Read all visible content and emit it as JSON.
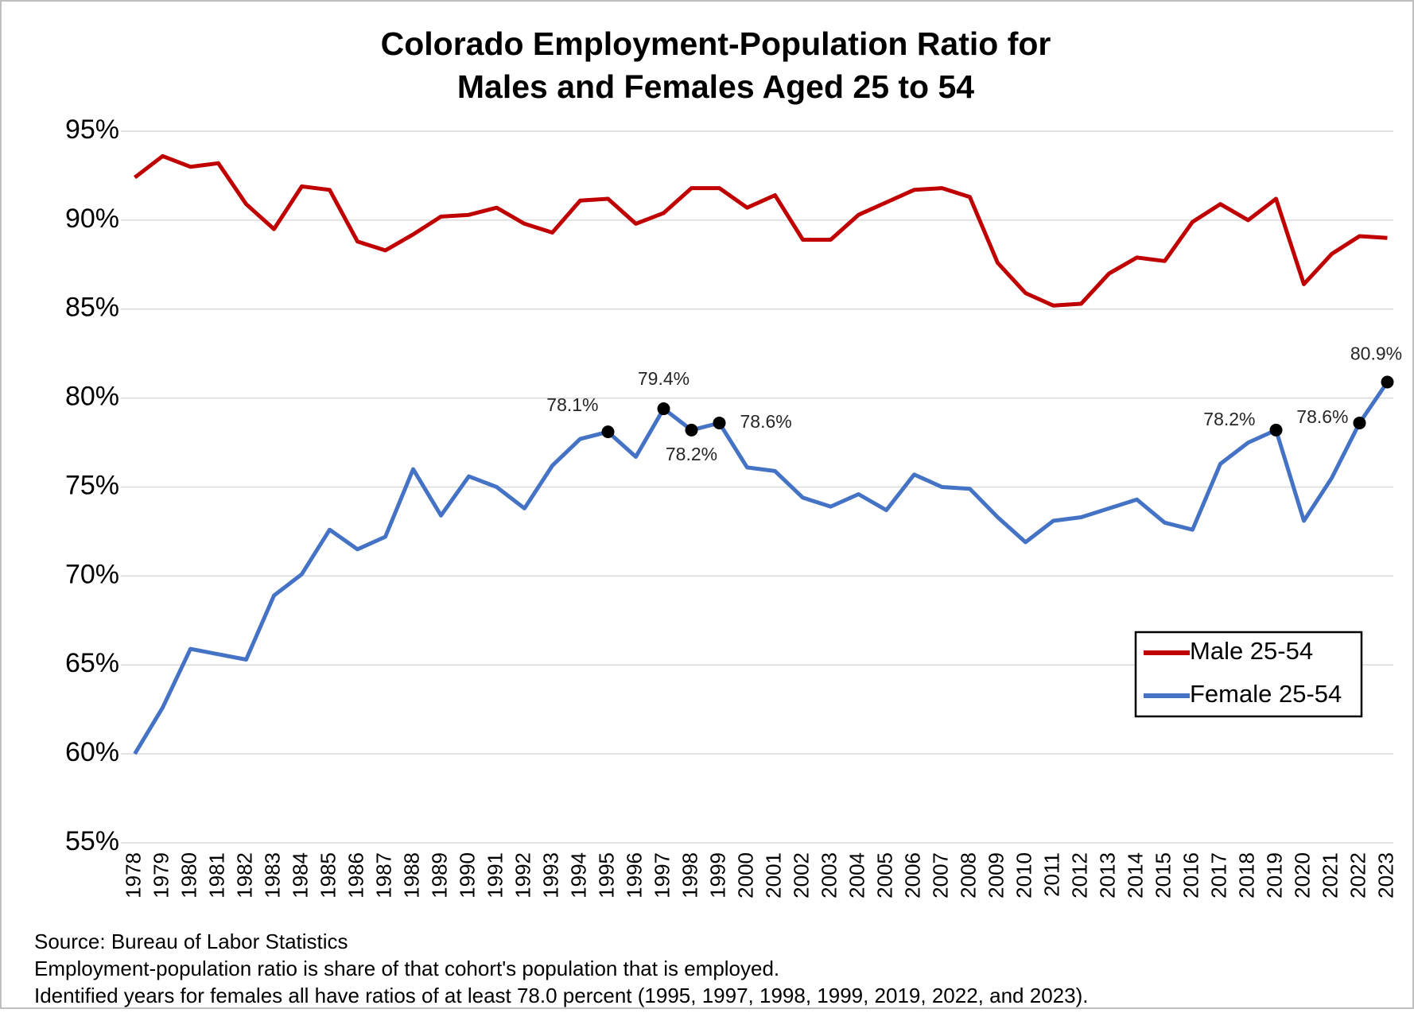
{
  "chart_data": {
    "type": "line",
    "title": [
      "Colorado Employment-Population Ratio for",
      "Males and Females Aged 25 to 54"
    ],
    "categories": [
      "1978",
      "1979",
      "1980",
      "1981",
      "1982",
      "1983",
      "1984",
      "1985",
      "1986",
      "1987",
      "1988",
      "1989",
      "1990",
      "1991",
      "1992",
      "1993",
      "1994",
      "1995",
      "1996",
      "1997",
      "1998",
      "1999",
      "2000",
      "2001",
      "2002",
      "2003",
      "2004",
      "2005",
      "2006",
      "2007",
      "2008",
      "2009",
      "2010",
      "2011",
      "2012",
      "2013",
      "2014",
      "2015",
      "2016",
      "2017",
      "2018",
      "2019",
      "2020",
      "2021",
      "2022",
      "2023"
    ],
    "series": [
      {
        "name": "Male 25-54",
        "color": "#c00000",
        "values": [
          92.4,
          93.6,
          93.0,
          93.2,
          90.9,
          89.5,
          91.9,
          91.7,
          88.8,
          88.3,
          89.2,
          90.2,
          90.3,
          90.7,
          89.8,
          89.3,
          91.1,
          91.2,
          89.8,
          90.4,
          91.8,
          91.8,
          90.7,
          91.4,
          88.9,
          88.9,
          90.3,
          91.0,
          91.7,
          91.8,
          91.3,
          87.6,
          85.9,
          85.2,
          85.3,
          87.0,
          87.9,
          87.7,
          89.9,
          90.9,
          90.0,
          91.2,
          86.4,
          88.1,
          89.1,
          89.0
        ]
      },
      {
        "name": "Female 25-54",
        "color": "#4472c4",
        "values": [
          60.0,
          62.6,
          65.9,
          65.6,
          65.3,
          68.9,
          70.1,
          72.6,
          71.5,
          72.2,
          76.0,
          73.4,
          75.6,
          75.0,
          73.8,
          76.2,
          77.7,
          78.1,
          76.7,
          79.4,
          78.2,
          78.6,
          76.1,
          75.9,
          74.4,
          73.9,
          74.6,
          73.7,
          75.7,
          75.0,
          74.9,
          73.3,
          71.9,
          73.1,
          73.3,
          73.8,
          74.3,
          73.0,
          72.6,
          76.3,
          77.5,
          78.2,
          73.1,
          75.5,
          78.6,
          80.9
        ],
        "value_labels": [
          null,
          null,
          null,
          null,
          null,
          null,
          null,
          null,
          null,
          null,
          null,
          null,
          null,
          null,
          null,
          null,
          null,
          "78.1%",
          null,
          "79.4%",
          "78.2%",
          "78.6%",
          null,
          null,
          null,
          null,
          null,
          null,
          null,
          null,
          null,
          null,
          null,
          null,
          null,
          null,
          null,
          null,
          null,
          null,
          null,
          "78.2%",
          null,
          null,
          "78.6%",
          "80.9%"
        ]
      }
    ],
    "ylim": [
      55,
      95
    ],
    "yticks": [
      {
        "value": 55,
        "label": "55%"
      },
      {
        "value": 60,
        "label": "60%"
      },
      {
        "value": 65,
        "label": "65%"
      },
      {
        "value": 70,
        "label": "70%"
      },
      {
        "value": 75,
        "label": "75%"
      },
      {
        "value": 80,
        "label": "80%"
      },
      {
        "value": 85,
        "label": "85%"
      },
      {
        "value": 90,
        "label": "90%"
      },
      {
        "value": 95,
        "label": "95%"
      }
    ],
    "grid": true,
    "legend": "right",
    "notes": [
      "Source: Bureau of Labor Statistics",
      "Employment-population ratio is share of that cohort's population that is employed.",
      "Identified years for females all have ratios of at least 78.0 percent (1995, 1997, 1998, 1999, 2019, 2022, and 2023)."
    ]
  }
}
